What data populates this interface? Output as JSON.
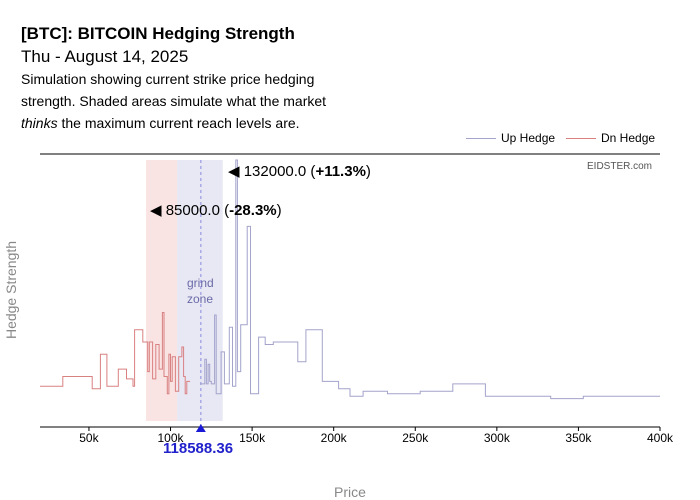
{
  "header": {
    "title": "[BTC]: BITCOIN Hedging Strength",
    "subtitle": "Thu - August 14, 2025",
    "desc_line1": "Simulation showing current strike price hedging",
    "desc_line2": "strength. Shaded areas simulate what the market",
    "desc_line3_em": "thinks",
    "desc_line3_rest": " the maximum current reach levels are."
  },
  "legend": {
    "up_label": "Up Hedge",
    "dn_label": "Dn Hedge",
    "up_color": "#a3a3cc",
    "dn_color": "#d98080"
  },
  "watermark": "EIDSTER.com",
  "annotations": {
    "up_prefix": "◀ 132000.0 (",
    "up_pct": "+11.3%",
    "up_suffix": ")",
    "dn_prefix": "◀ 85000.0 (",
    "dn_pct": "-28.3%",
    "dn_suffix": ")",
    "zone_line1": "grind",
    "zone_line2": "zone",
    "current_price": "118588.36"
  },
  "chart_data": {
    "type": "line",
    "xlabel": "Price",
    "ylabel": "Hedge Strength",
    "xlim": [
      20000,
      400000
    ],
    "ylim": [
      0,
      100
    ],
    "x_ticks": [
      50000,
      100000,
      150000,
      200000,
      250000,
      300000,
      350000,
      400000
    ],
    "x_tick_labels": [
      "50k",
      "100k",
      "150k",
      "200k",
      "250k",
      "300k",
      "350k",
      "400k"
    ],
    "current_price": 118588.36,
    "up_reach": 132000,
    "dn_reach": 85000,
    "grind_zone": [
      104000,
      132000
    ],
    "series": [
      {
        "name": "Dn Hedge",
        "color": "#d98080",
        "points": [
          [
            20000,
            8
          ],
          [
            34000,
            8
          ],
          [
            34000,
            12
          ],
          [
            52000,
            12
          ],
          [
            52000,
            7
          ],
          [
            57000,
            7
          ],
          [
            57000,
            21
          ],
          [
            61000,
            21
          ],
          [
            61000,
            8
          ],
          [
            68000,
            8
          ],
          [
            68000,
            15
          ],
          [
            73000,
            15
          ],
          [
            73000,
            11
          ],
          [
            77000,
            11
          ],
          [
            77000,
            8
          ],
          [
            78000,
            8
          ],
          [
            78000,
            31
          ],
          [
            83000,
            31
          ],
          [
            83000,
            26
          ],
          [
            86000,
            26
          ],
          [
            86000,
            14
          ],
          [
            87000,
            14
          ],
          [
            87000,
            26
          ],
          [
            89000,
            26
          ],
          [
            89000,
            11
          ],
          [
            91000,
            11
          ],
          [
            91000,
            25
          ],
          [
            93000,
            25
          ],
          [
            93000,
            15
          ],
          [
            95000,
            15
          ],
          [
            95000,
            38
          ],
          [
            96000,
            38
          ],
          [
            96000,
            12
          ],
          [
            98000,
            12
          ],
          [
            98000,
            5
          ],
          [
            99000,
            5
          ],
          [
            99000,
            21
          ],
          [
            100000,
            21
          ],
          [
            100000,
            10
          ],
          [
            101000,
            10
          ],
          [
            101000,
            20
          ],
          [
            103000,
            20
          ],
          [
            103000,
            6
          ],
          [
            105000,
            6
          ],
          [
            105000,
            20
          ],
          [
            107000,
            20
          ],
          [
            107000,
            24
          ],
          [
            108000,
            24
          ],
          [
            108000,
            12
          ],
          [
            109000,
            12
          ],
          [
            109000,
            5
          ],
          [
            110000,
            5
          ],
          [
            110000,
            10
          ],
          [
            112000,
            10
          ]
        ]
      },
      {
        "name": "Up Hedge",
        "color": "#a3a3cc",
        "points": [
          [
            118000,
            9
          ],
          [
            121000,
            9
          ],
          [
            121000,
            19
          ],
          [
            122000,
            19
          ],
          [
            122000,
            9
          ],
          [
            123000,
            9
          ],
          [
            123000,
            17
          ],
          [
            124000,
            17
          ],
          [
            124000,
            10
          ],
          [
            125000,
            10
          ],
          [
            125000,
            9
          ],
          [
            127000,
            9
          ],
          [
            127000,
            37
          ],
          [
            128000,
            37
          ],
          [
            128000,
            5
          ],
          [
            131000,
            5
          ],
          [
            131000,
            22
          ],
          [
            133000,
            22
          ],
          [
            133000,
            9
          ],
          [
            136000,
            9
          ],
          [
            136000,
            32
          ],
          [
            138000,
            32
          ],
          [
            138000,
            8
          ],
          [
            140000,
            8
          ],
          [
            140000,
            100
          ],
          [
            141000,
            100
          ],
          [
            141000,
            14
          ],
          [
            143000,
            14
          ],
          [
            143000,
            33
          ],
          [
            147000,
            33
          ],
          [
            147000,
            73
          ],
          [
            149000,
            73
          ],
          [
            149000,
            5
          ],
          [
            154000,
            5
          ],
          [
            154000,
            28
          ],
          [
            158000,
            28
          ],
          [
            158000,
            25
          ],
          [
            163000,
            25
          ],
          [
            163000,
            26
          ],
          [
            178000,
            26
          ],
          [
            178000,
            18
          ],
          [
            183000,
            18
          ],
          [
            183000,
            31
          ],
          [
            193000,
            31
          ],
          [
            193000,
            10
          ],
          [
            203000,
            10
          ],
          [
            203000,
            7
          ],
          [
            210000,
            7
          ],
          [
            210000,
            4
          ],
          [
            218000,
            4
          ],
          [
            218000,
            6
          ],
          [
            233000,
            6
          ],
          [
            233000,
            5
          ],
          [
            253000,
            5
          ],
          [
            253000,
            6
          ],
          [
            273000,
            6
          ],
          [
            273000,
            9
          ],
          [
            293000,
            9
          ],
          [
            293000,
            4
          ],
          [
            333000,
            4
          ],
          [
            333000,
            3
          ],
          [
            353000,
            3
          ],
          [
            353000,
            4
          ],
          [
            400000,
            4
          ]
        ]
      }
    ]
  }
}
